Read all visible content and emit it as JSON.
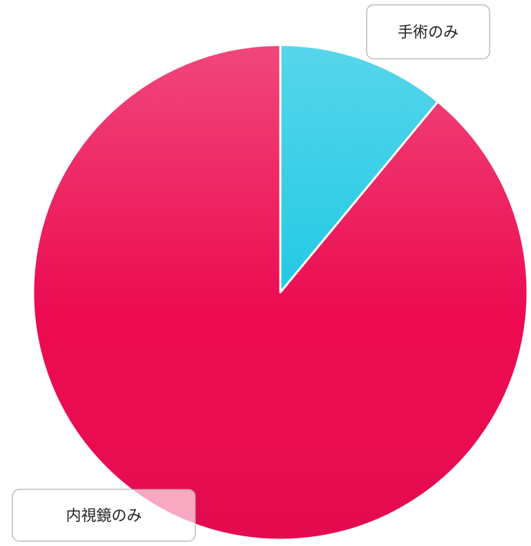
{
  "chart_data": {
    "type": "pie",
    "categories": [
      "手術のみ",
      "内視鏡のみ"
    ],
    "values": [
      11,
      89
    ],
    "colors": [
      "#1ec8e4",
      "#ec0a50"
    ]
  }
}
